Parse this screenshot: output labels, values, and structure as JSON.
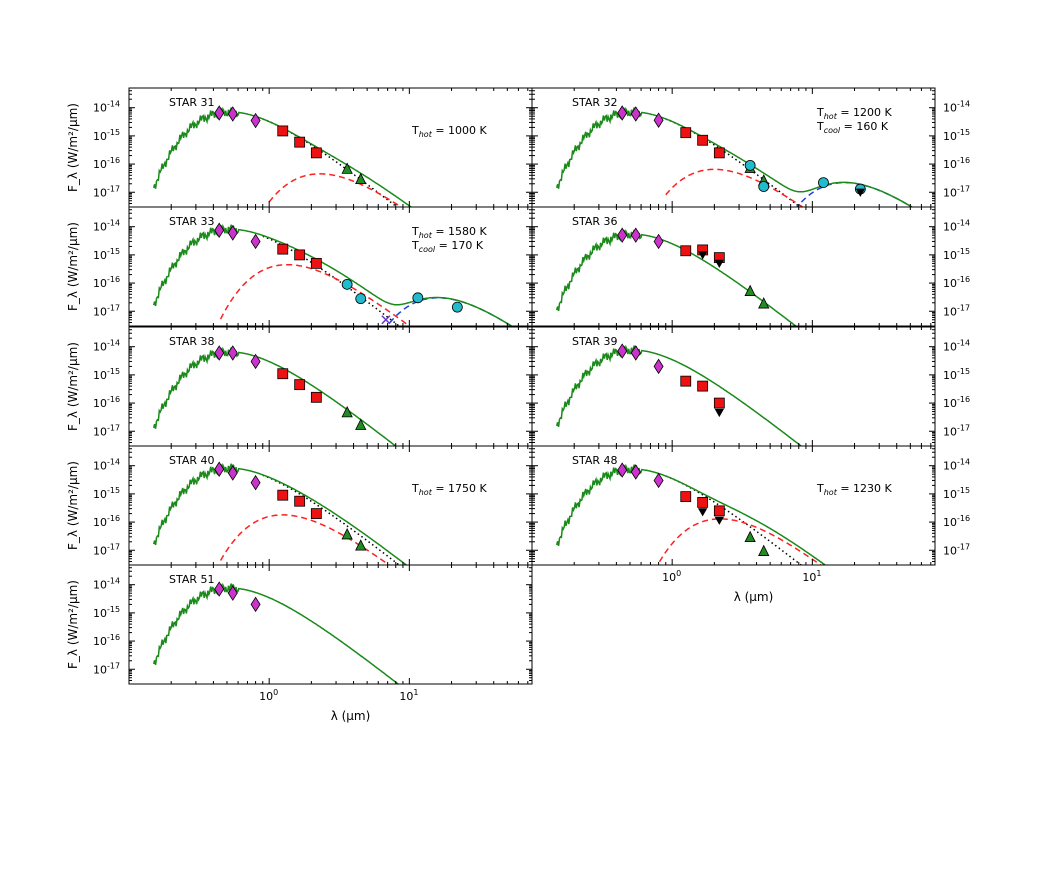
{
  "chart_data": {
    "type": "line",
    "xaxis": {
      "label": "λ (μm)",
      "scale": "log",
      "range": [
        0.1,
        75
      ],
      "ticks": [
        1,
        10
      ],
      "tick_labels": [
        "10^0",
        "10^1"
      ]
    },
    "yaxis": {
      "label": "F_λ (W/m²/μm)",
      "scale": "log",
      "range": [
        3e-18,
        5e-14
      ],
      "ticks": [
        1e-17,
        1e-16,
        1e-15,
        1e-14
      ],
      "tick_labels": [
        "10^-17",
        "10^-16",
        "10^-15",
        "10^-14"
      ]
    },
    "colors": {
      "model_total": "#1a8a1a",
      "hot_dust": "#ff2020",
      "cool_dust": "#2040e0",
      "stellar": "#000000",
      "optical": "#cc33cc",
      "nir": "#ee1111",
      "irac": "#228b22",
      "mips": "#22bbcc",
      "upper_limit": "#000000"
    },
    "panels": [
      {
        "name": "STAR 31",
        "col": 0,
        "row": 0,
        "annotations": [
          "T_hot = 1000 K"
        ],
        "hot": {
          "peak_x": 2.3,
          "peak_y": 4.5e-17,
          "from": 1.0
        },
        "cool": null,
        "photometry": {
          "optical": [
            [
              0.44,
              6.5e-15
            ],
            [
              0.55,
              6e-15
            ],
            [
              0.8,
              3.5e-15
            ]
          ],
          "nir": [
            [
              1.25,
              1.5e-15
            ],
            [
              1.65,
              6e-16
            ],
            [
              2.17,
              2.5e-16
            ]
          ],
          "irac": [
            [
              3.6,
              6.5e-17
            ],
            [
              4.5,
              2.8e-17
            ]
          ],
          "mips": [],
          "upper": []
        }
      },
      {
        "name": "STAR 32",
        "col": 1,
        "row": 0,
        "annotations": [
          "T_hot = 1200 K",
          "T_cool = 160 K"
        ],
        "hot": {
          "peak_x": 2.0,
          "peak_y": 6.5e-17,
          "from": 0.9
        },
        "cool": {
          "peak_x": 17,
          "peak_y": 2.2e-17,
          "from": 5
        },
        "photometry": {
          "optical": [
            [
              0.44,
              6.5e-15
            ],
            [
              0.55,
              6e-15
            ],
            [
              0.8,
              3.6e-15
            ]
          ],
          "nir": [
            [
              1.25,
              1.3e-15
            ],
            [
              1.65,
              7e-16
            ],
            [
              2.17,
              2.5e-16
            ]
          ],
          "irac": [
            [
              3.6,
              7e-17
            ],
            [
              4.5,
              2.5e-17
            ]
          ],
          "mips": [
            [
              3.6,
              9e-17
            ],
            [
              4.5,
              1.6e-17
            ],
            [
              12,
              2.2e-17
            ],
            [
              22,
              1.3e-17
            ]
          ],
          "upper": [
            [
              22,
              1.3e-17
            ]
          ]
        }
      },
      {
        "name": "STAR 33",
        "col": 0,
        "row": 1,
        "annotations": [
          "T_hot = 1580 K",
          "T_cool = 170 K"
        ],
        "hot": {
          "peak_x": 1.35,
          "peak_y": 4.5e-16,
          "from": 0.45
        },
        "cool": {
          "peak_x": 16,
          "peak_y": 3e-17,
          "from": 6
        },
        "photometry": {
          "optical": [
            [
              0.44,
              7.5e-15
            ],
            [
              0.55,
              6e-15
            ],
            [
              0.8,
              3e-15
            ]
          ],
          "nir": [
            [
              1.25,
              1.6e-15
            ],
            [
              1.65,
              1e-15
            ],
            [
              2.17,
              5e-16
            ]
          ],
          "irac": [],
          "mips": [
            [
              3.6,
              9e-17
            ],
            [
              4.5,
              2.8e-17
            ],
            [
              11.5,
              3e-17
            ],
            [
              22,
              1.4e-17
            ]
          ],
          "upper": [],
          "cross": [
            [
              6.8,
              5e-18
            ]
          ]
        }
      },
      {
        "name": "STAR 36",
        "col": 1,
        "row": 1,
        "annotations": [],
        "hot": null,
        "cool": null,
        "photometry": {
          "optical": [
            [
              0.44,
              5e-15
            ],
            [
              0.55,
              5e-15
            ],
            [
              0.8,
              3e-15
            ]
          ],
          "nir": [
            [
              1.25,
              1.4e-15
            ],
            [
              1.65,
              1.5e-15
            ],
            [
              2.17,
              8e-16
            ]
          ],
          "irac": [
            [
              3.6,
              5e-17
            ],
            [
              4.5,
              1.8e-17
            ]
          ],
          "mips": [],
          "upper": [
            [
              1.65,
              1.3e-15
            ],
            [
              2.17,
              6.5e-16
            ]
          ]
        }
      },
      {
        "name": "STAR 38",
        "col": 0,
        "row": 2,
        "annotations": [],
        "hot": null,
        "cool": null,
        "photometry": {
          "optical": [
            [
              0.44,
              6e-15
            ],
            [
              0.55,
              6e-15
            ],
            [
              0.8,
              3e-15
            ]
          ],
          "nir": [
            [
              1.25,
              1.1e-15
            ],
            [
              1.65,
              4.5e-16
            ],
            [
              2.17,
              1.6e-16
            ]
          ],
          "irac": [
            [
              3.6,
              4.5e-17
            ],
            [
              4.5,
              1.6e-17
            ]
          ],
          "mips": [],
          "upper": []
        }
      },
      {
        "name": "STAR 39",
        "col": 1,
        "row": 2,
        "annotations": [],
        "hot": null,
        "cool": null,
        "photometry": {
          "optical": [
            [
              0.44,
              7e-15
            ],
            [
              0.55,
              6e-15
            ],
            [
              0.8,
              2e-15
            ]
          ],
          "nir": [
            [
              1.25,
              6e-16
            ],
            [
              1.65,
              4e-16
            ],
            [
              2.17,
              1e-16
            ]
          ],
          "irac": [],
          "mips": [],
          "upper": [
            [
              2.17,
              6e-17
            ]
          ]
        }
      },
      {
        "name": "STAR 40",
        "col": 0,
        "row": 3,
        "annotations": [
          "T_hot = 1750 K"
        ],
        "hot": {
          "peak_x": 1.25,
          "peak_y": 1.8e-16,
          "from": 0.45
        },
        "cool": null,
        "photometry": {
          "optical": [
            [
              0.44,
              7.5e-15
            ],
            [
              0.55,
              5.5e-15
            ],
            [
              0.8,
              2.5e-15
            ]
          ],
          "nir": [
            [
              1.25,
              9e-16
            ],
            [
              1.65,
              5.5e-16
            ],
            [
              2.17,
              2e-16
            ]
          ],
          "irac": [
            [
              3.6,
              3.5e-17
            ],
            [
              4.5,
              1.4e-17
            ]
          ],
          "mips": [],
          "upper": []
        }
      },
      {
        "name": "STAR 48",
        "col": 1,
        "row": 3,
        "annotations": [
          "T_hot = 1230 K"
        ],
        "hot": {
          "peak_x": 2.2,
          "peak_y": 1.3e-16,
          "from": 0.75
        },
        "cool": null,
        "photometry": {
          "optical": [
            [
              0.44,
              7e-15
            ],
            [
              0.55,
              6e-15
            ],
            [
              0.8,
              3e-15
            ]
          ],
          "nir": [
            [
              1.25,
              8e-16
            ],
            [
              1.65,
              5e-16
            ],
            [
              2.17,
              2.5e-16
            ]
          ],
          "irac": [
            [
              3.6,
              2.8e-17
            ],
            [
              4.5,
              9e-18
            ]
          ],
          "mips": [],
          "upper": [
            [
              1.65,
              3e-16
            ],
            [
              2.17,
              1.5e-16
            ]
          ]
        }
      },
      {
        "name": "STAR 51",
        "col": 0,
        "row": 4,
        "annotations": [],
        "hot": null,
        "cool": null,
        "photometry": {
          "optical": [
            [
              0.44,
              7e-15
            ],
            [
              0.55,
              5e-15
            ],
            [
              0.8,
              2e-15
            ]
          ],
          "nir": [],
          "irac": [],
          "mips": [],
          "upper": []
        }
      }
    ]
  }
}
